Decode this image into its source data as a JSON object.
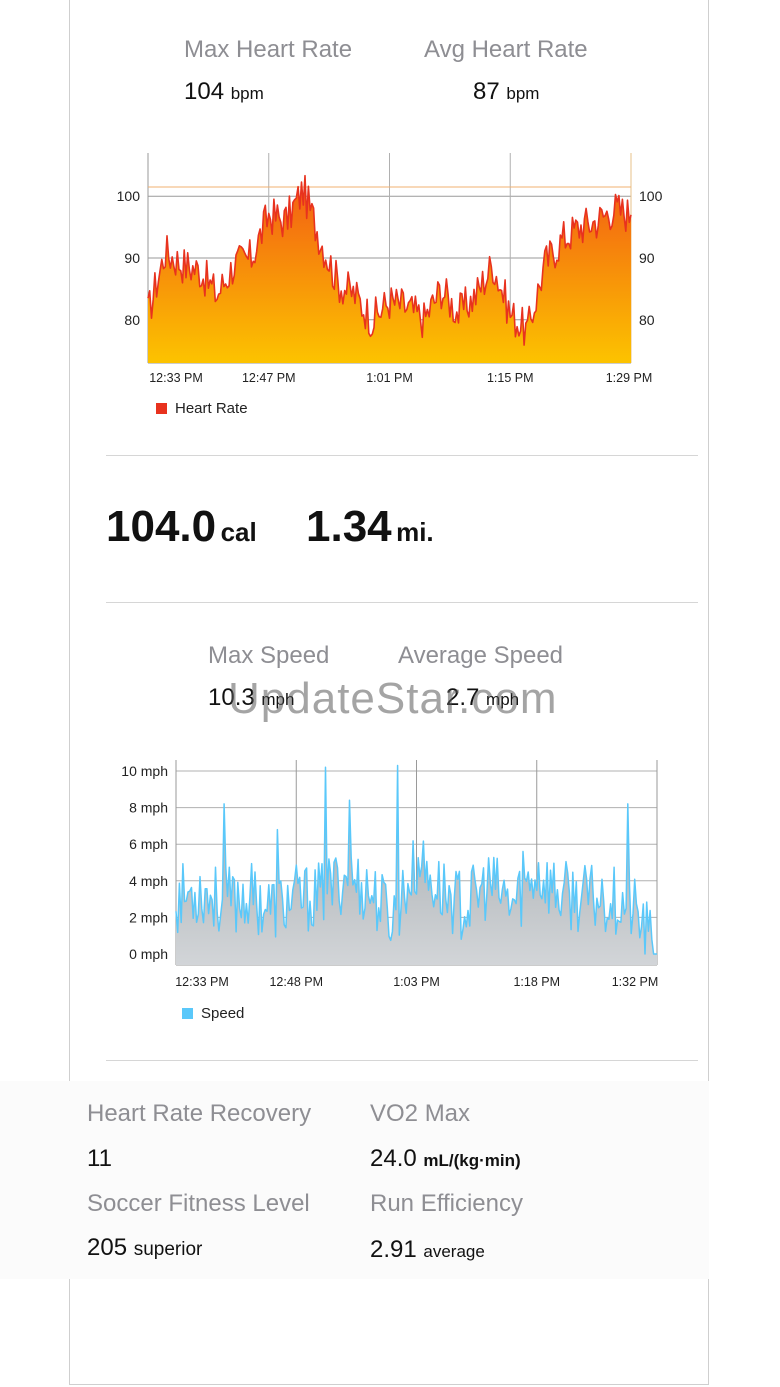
{
  "heart": {
    "max_label": "Max Heart Rate",
    "max_value": "104",
    "max_unit": "bpm",
    "avg_label": "Avg Heart Rate",
    "avg_value": "87",
    "avg_unit": "bpm",
    "legend": "Heart Rate"
  },
  "energy": {
    "calories": "104.0",
    "calories_unit": "cal",
    "distance": "1.34",
    "distance_unit": "mi."
  },
  "speed": {
    "max_label": "Max Speed",
    "max_value": "10.3",
    "max_unit": "mph",
    "avg_label": "Average Speed",
    "avg_value": "2.7",
    "avg_unit": "mph",
    "legend": "Speed"
  },
  "watermark": "UpdateStar.com",
  "metrics": {
    "hrr_label": "Heart Rate Recovery",
    "hrr_value": "11",
    "vo2_label": "VO2 Max",
    "vo2_value": "24.0",
    "vo2_unit": "mL/(kg·min)",
    "sfl_label": "Soccer Fitness Level",
    "sfl_value": "205",
    "sfl_unit": "superior",
    "re_label": "Run Efficiency",
    "re_value": "2.91",
    "re_unit": "average"
  },
  "colors": {
    "heart_line": "#e8321e",
    "heart_fill_top": "#f25a14",
    "heart_fill_bottom": "#fcc300",
    "speed_line": "#5ac8fa",
    "speed_fill": "#b4b9bd"
  },
  "chart_data": [
    {
      "type": "area",
      "series": [
        {
          "name": "Heart Rate",
          "x": [
            "12:33 PM",
            "12:35 PM",
            "12:37 PM",
            "12:39 PM",
            "12:41 PM",
            "12:43 PM",
            "12:45 PM",
            "12:47 PM",
            "12:49 PM",
            "12:51 PM",
            "12:53 PM",
            "12:55 PM",
            "12:57 PM",
            "12:59 PM",
            "1:01 PM",
            "1:03 PM",
            "1:05 PM",
            "1:07 PM",
            "1:09 PM",
            "1:11 PM",
            "1:13 PM",
            "1:15 PM",
            "1:17 PM",
            "1:19 PM",
            "1:21 PM",
            "1:23 PM",
            "1:25 PM",
            "1:27 PM",
            "1:29 PM"
          ],
          "values": [
            81,
            91,
            89,
            88,
            84,
            89,
            90,
            97,
            96,
            101,
            93,
            86,
            84,
            80,
            83,
            82,
            80,
            85,
            81,
            84,
            89,
            81,
            78,
            89,
            93,
            95,
            96,
            98,
            97
          ]
        }
      ],
      "xlabel": "",
      "ylabel": "",
      "x_ticks": [
        "12:33 PM",
        "12:47 PM",
        "1:01 PM",
        "1:15 PM",
        "1:29 PM"
      ],
      "y_ticks": [
        80,
        90,
        100
      ],
      "ylim": [
        73,
        107
      ],
      "y_axis_both_sides": true,
      "grid": true,
      "legend_position": "bottom-left"
    },
    {
      "type": "area",
      "series": [
        {
          "name": "Speed",
          "x": [
            "12:33 PM",
            "12:36 PM",
            "12:39 PM",
            "12:42 PM",
            "12:45 PM",
            "12:48 PM",
            "12:51 PM",
            "12:54 PM",
            "12:57 PM",
            "1:00 PM",
            "1:03 PM",
            "1:06 PM",
            "1:09 PM",
            "1:12 PM",
            "1:15 PM",
            "1:18 PM",
            "1:21 PM",
            "1:24 PM",
            "1:27 PM",
            "1:30 PM",
            "1:32 PM"
          ],
          "values": [
            3.0,
            3.5,
            2.8,
            3.2,
            2.5,
            3.0,
            3.1,
            4.2,
            3.5,
            2.0,
            4.8,
            3.5,
            2.5,
            3.8,
            2.7,
            4.5,
            3.2,
            3.0,
            3.1,
            2.5,
            0.0
          ]
        }
      ],
      "peaks": [
        8.2,
        10.2,
        10.3,
        8.2
      ],
      "xlabel": "",
      "ylabel": "",
      "x_ticks": [
        "12:33 PM",
        "12:48 PM",
        "1:03 PM",
        "1:18 PM",
        "1:32 PM"
      ],
      "y_ticks": [
        "0 mph",
        "2 mph",
        "4 mph",
        "6 mph",
        "8 mph",
        "10 mph"
      ],
      "ylim": [
        -0.6,
        10.6
      ],
      "grid": true,
      "legend_position": "bottom-left"
    }
  ]
}
